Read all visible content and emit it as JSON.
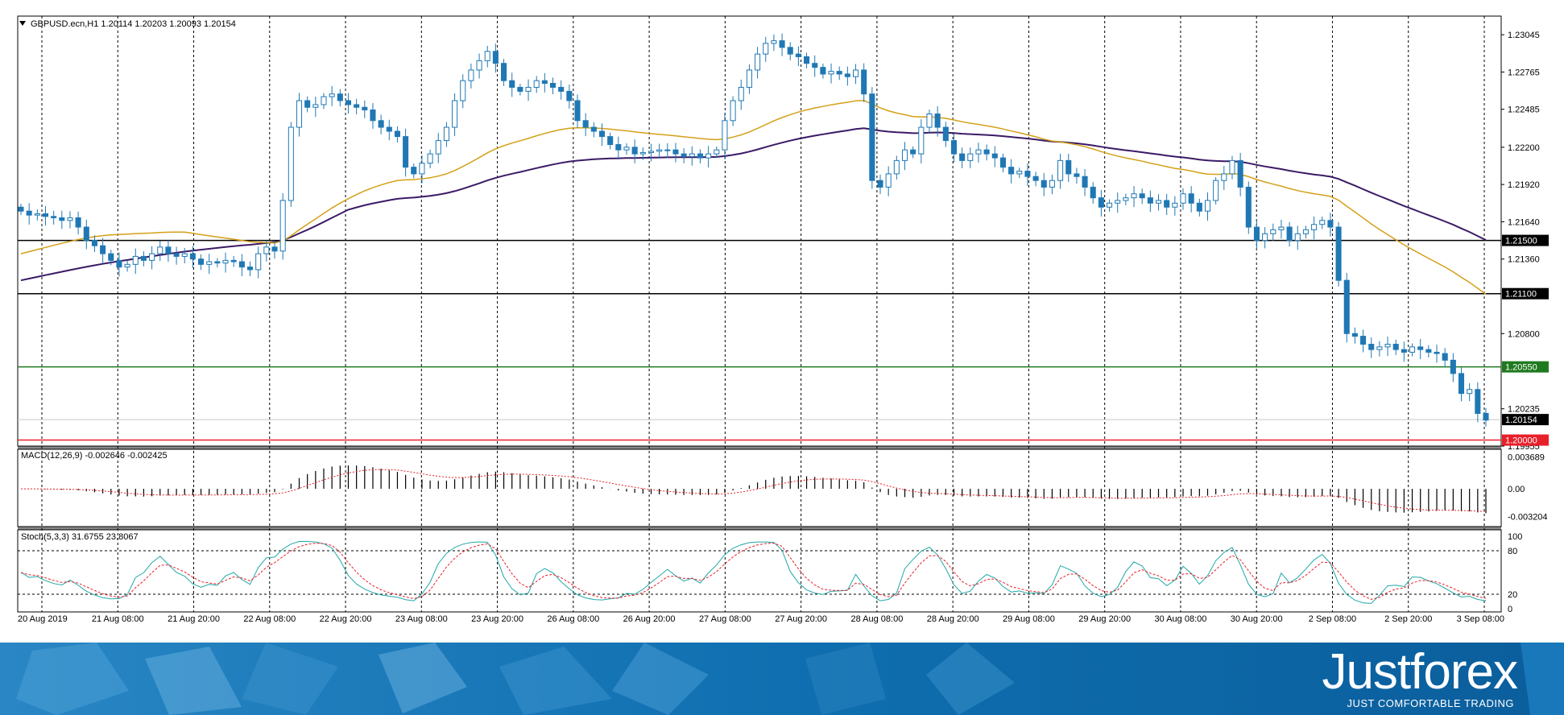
{
  "header": {
    "title": "GBPUSD.ecn,H1  1.20114 1.20203 1.20093 1.20154"
  },
  "colors": {
    "bull": "#ffffff",
    "bear": "#1f78b4",
    "candle_outline": "#1f78b4",
    "ma_fast": "#d4a017",
    "ma_slow": "#3b1a66",
    "level_black": "#000000",
    "level_green": "#1f7a1f",
    "level_red": "#e8202a",
    "stoch_main": "#20a8a8",
    "stoch_signal": "#e8202a",
    "macd_hist": "#000000",
    "macd_signal": "#e8202a",
    "banner": "#0f6fb0",
    "brand": "#ffffff"
  },
  "chart_data": {
    "type": "candlestick",
    "symbol": "GBPUSD.ecn",
    "timeframe": "H1",
    "ohlc_last": {
      "open": "1.20114",
      "high": "1.20203",
      "low": "1.20093",
      "close": "1.20154"
    },
    "ylim": [
      1.19955,
      1.23185
    ],
    "price_axis_labels": [
      "1.23045",
      "1.22765",
      "1.22485",
      "1.22200",
      "1.21920",
      "1.21640",
      "1.21360",
      "1.20800",
      "1.20235",
      "1.19955"
    ],
    "x_tick_labels": [
      "20 Aug 2019",
      "21 Aug 08:00",
      "21 Aug 20:00",
      "22 Aug 08:00",
      "22 Aug 20:00",
      "23 Aug 08:00",
      "23 Aug 20:00",
      "26 Aug 08:00",
      "26 Aug 20:00",
      "27 Aug 08:00",
      "27 Aug 20:00",
      "28 Aug 08:00",
      "28 Aug 20:00",
      "29 Aug 08:00",
      "29 Aug 20:00",
      "30 Aug 08:00",
      "30 Aug 20:00",
      "2 Sep 08:00",
      "2 Sep 20:00",
      "3 Sep 08:00"
    ],
    "horizontal_levels": [
      {
        "price": 1.215,
        "label": "1.21500",
        "color": "#000000"
      },
      {
        "price": 1.211,
        "label": "1.21100",
        "color": "#000000"
      },
      {
        "price": 1.2055,
        "label": "1.20550",
        "color": "#1f7a1f"
      },
      {
        "price": 1.20154,
        "label": "1.20154",
        "color": "#000000"
      },
      {
        "price": 1.2,
        "label": "1.20000",
        "color": "#e8202a"
      }
    ],
    "close_series": [
      1.2172,
      1.2169,
      1.217,
      1.2168,
      1.2167,
      1.2165,
      1.2167,
      1.216,
      1.215,
      1.2146,
      1.214,
      1.2135,
      1.213,
      1.2132,
      1.2138,
      1.2135,
      1.214,
      1.2145,
      1.214,
      1.2138,
      1.214,
      1.2136,
      1.2132,
      1.2134,
      1.2133,
      1.2135,
      1.2134,
      1.213,
      1.2128,
      1.214,
      1.2145,
      1.2142,
      1.218,
      1.2235,
      1.2255,
      1.225,
      1.2252,
      1.2258,
      1.226,
      1.2255,
      1.2252,
      1.225,
      1.2248,
      1.224,
      1.2235,
      1.2232,
      1.2228,
      1.2205,
      1.22,
      1.2208,
      1.2215,
      1.2225,
      1.2235,
      1.2255,
      1.227,
      1.2278,
      1.2285,
      1.2292,
      1.2283,
      1.227,
      1.2265,
      1.2262,
      1.2265,
      1.227,
      1.2268,
      1.2265,
      1.2262,
      1.2255,
      1.224,
      1.2235,
      1.2232,
      1.2228,
      1.2222,
      1.2218,
      1.222,
      1.2215,
      1.2216,
      1.2217,
      1.2218,
      1.2218,
      1.2215,
      1.2213,
      1.2215,
      1.2212,
      1.2215,
      1.2218,
      1.224,
      1.2255,
      1.2265,
      1.2278,
      1.229,
      1.2298,
      1.23,
      1.2295,
      1.229,
      1.2288,
      1.2283,
      1.228,
      1.2275,
      1.2277,
      1.2275,
      1.2273,
      1.2278,
      1.226,
      1.2195,
      1.219,
      1.22,
      1.221,
      1.2218,
      1.2215,
      1.2235,
      1.2245,
      1.2235,
      1.2225,
      1.2215,
      1.221,
      1.2215,
      1.2218,
      1.2215,
      1.2212,
      1.2205,
      1.22,
      1.2202,
      1.2198,
      1.2195,
      1.219,
      1.2195,
      1.221,
      1.22,
      1.2198,
      1.219,
      1.2182,
      1.2175,
      1.2178,
      1.218,
      1.2182,
      1.2185,
      1.2182,
      1.2178,
      1.218,
      1.2175,
      1.2178,
      1.2185,
      1.2178,
      1.2172,
      1.218,
      1.2195,
      1.22,
      1.221,
      1.219,
      1.216,
      1.215,
      1.2155,
      1.2158,
      1.216,
      1.215,
      1.2155,
      1.2158,
      1.2162,
      1.2165,
      1.216,
      1.212,
      1.208,
      1.2078,
      1.2072,
      1.2068,
      1.207,
      1.2072,
      1.2068,
      1.2066,
      1.207,
      1.2068,
      1.2066,
      1.2065,
      1.206,
      1.205,
      1.2035,
      1.2038,
      1.202,
      1.2015
    ],
    "ma_fast": {
      "start": 1.214,
      "peak_index": 105,
      "end": 1.212
    },
    "ma_slow": {
      "start": 1.212,
      "end": 1.2162
    },
    "indicators": {
      "macd": {
        "label": "MACD(12,26,9) -0.002646 -0.002425",
        "axis_labels": [
          "0.003689",
          "0.00",
          "-0.003204"
        ],
        "ylim": [
          -0.0042,
          0.0044
        ]
      },
      "stochastic": {
        "label": "Stoch(5,3,3) 31.6755 23.8067",
        "axis_labels": [
          "100",
          "80",
          "20",
          "0"
        ],
        "ylim": [
          0,
          100
        ],
        "levels": [
          80,
          20
        ]
      }
    }
  },
  "branding": {
    "name": "Justforex",
    "tagline": "JUST COMFORTABLE TRADING"
  }
}
